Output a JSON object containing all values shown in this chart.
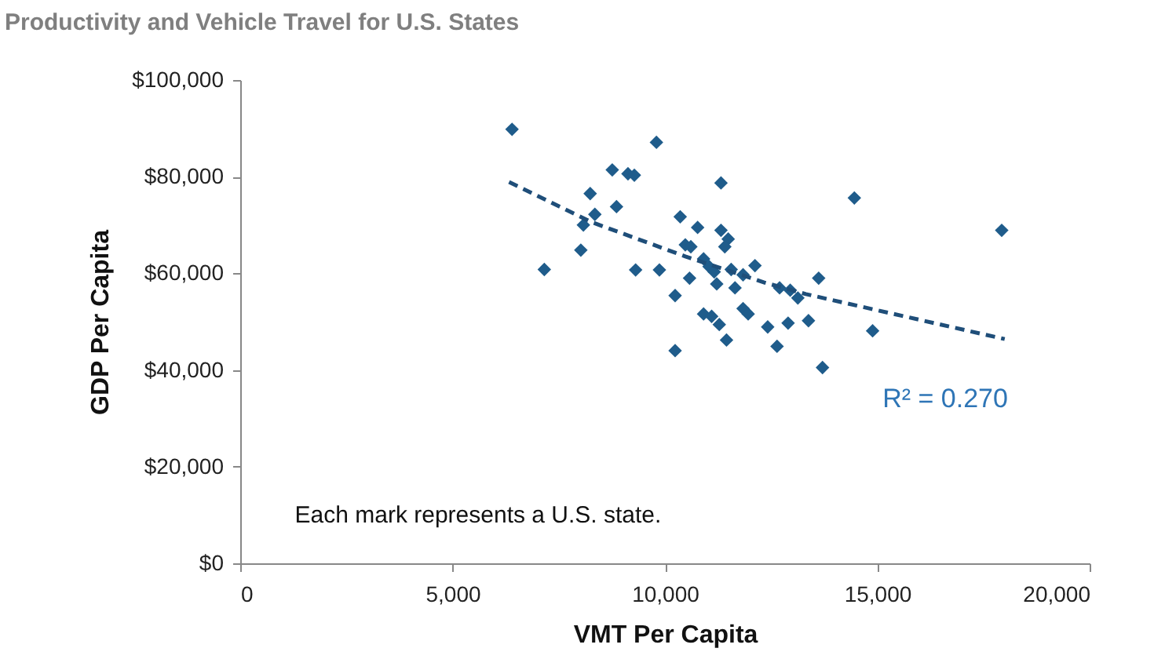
{
  "chart_data": {
    "type": "scatter",
    "title": "Productivity and Vehicle Travel for U.S. States",
    "xlabel": "VMT Per Capita",
    "ylabel": "GDP Per Capita",
    "xlim": [
      0,
      20000
    ],
    "xticks": [
      {
        "value": 0,
        "label": "0"
      },
      {
        "value": 5000,
        "label": "5,000"
      },
      {
        "value": 10000,
        "label": "10,000"
      },
      {
        "value": 15000,
        "label": "15,000"
      },
      {
        "value": 20000,
        "label": "20,000"
      }
    ],
    "ylim": [
      0,
      100000
    ],
    "yticks": [
      {
        "value": 0,
        "label": "$0"
      },
      {
        "value": 20000,
        "label": "$20,000"
      },
      {
        "value": 40000,
        "label": "$40,000"
      },
      {
        "value": 60000,
        "label": "$60,000"
      },
      {
        "value": 80000,
        "label": "$80,000"
      },
      {
        "value": 100000,
        "label": "$100,000"
      }
    ],
    "grid": false,
    "series": [
      {
        "marker": "diamond",
        "color": "#1f5c8b",
        "x": [
          6400,
          9800,
          8760,
          9130,
          9280,
          11320,
          8240,
          8860,
          8350,
          8080,
          10360,
          10770,
          11320,
          11490,
          11410,
          10480,
          10610,
          8020,
          7160,
          9310,
          9870,
          10910,
          11040,
          11160,
          11560,
          11840,
          12120,
          10580,
          11220,
          11650,
          12700,
          12950,
          13130,
          10240,
          10910,
          11100,
          11840,
          11960,
          11280,
          12420,
          12900,
          13380,
          11450,
          12640,
          10240,
          14460,
          17930,
          13620,
          14890,
          13710
        ],
        "values": [
          89800,
          87100,
          81400,
          80600,
          80300,
          78700,
          76500,
          73800,
          72200,
          70000,
          71700,
          69500,
          68900,
          67100,
          65500,
          65900,
          65500,
          64800,
          60800,
          60700,
          60700,
          63000,
          61400,
          60300,
          60800,
          59700,
          61600,
          59000,
          57800,
          57000,
          57000,
          56500,
          54900,
          55400,
          51600,
          51100,
          52700,
          51600,
          49400,
          48900,
          49700,
          50200,
          46200,
          44900,
          44000,
          75600,
          68900,
          59000,
          48100,
          40500
        ]
      },
      {
        "type": "line",
        "line_style": "dashed",
        "marker": "none",
        "color": "#1f4e79",
        "x": [
          6330,
          8270,
          10480,
          12340,
          13320,
          18000
        ],
        "values": [
          78900,
          70600,
          63500,
          58100,
          55700,
          46400
        ]
      }
    ],
    "annotations": [
      "R² = 0.270",
      "Each mark represents a U.S. state."
    ]
  }
}
